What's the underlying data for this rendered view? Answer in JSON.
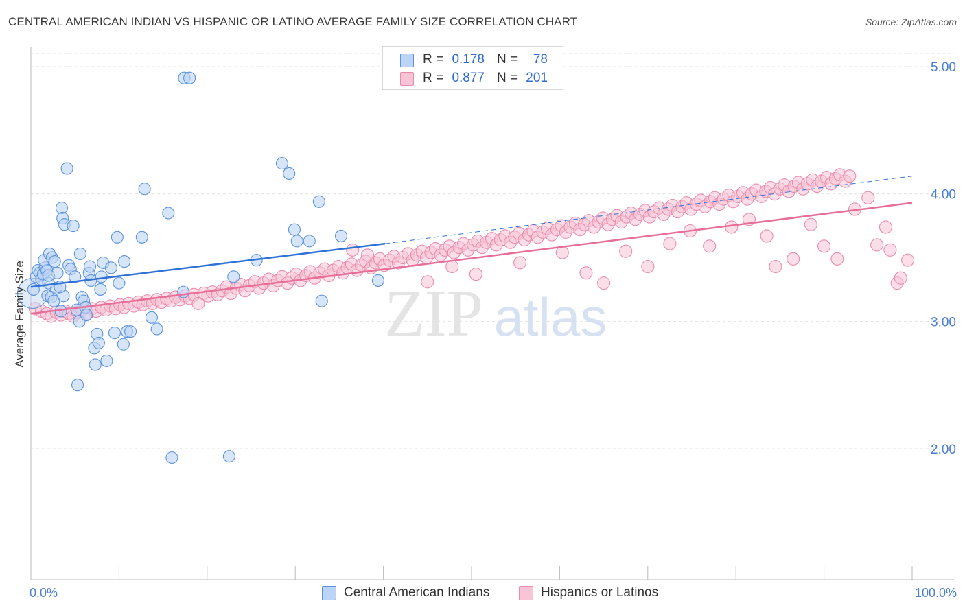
{
  "title": "CENTRAL AMERICAN INDIAN VS HISPANIC OR LATINO AVERAGE FAMILY SIZE CORRELATION CHART",
  "source": "Source: ZipAtlas.com",
  "watermark": {
    "zip": "ZIP",
    "atlas": "atlas"
  },
  "legend": {
    "rows": [
      {
        "r_label": "R =",
        "r_value": "0.178",
        "n_label": "N =",
        "n_value": "78"
      },
      {
        "r_label": "R =",
        "r_value": "0.877",
        "n_label": "N =",
        "n_value": "201"
      }
    ]
  },
  "colors": {
    "blue_fill": "#bcd4f5",
    "blue_stroke": "#5b93de",
    "blue_line": "#2f72d6",
    "pink_fill": "#f8c4d6",
    "pink_stroke": "#ea8bab",
    "pink_line": "#e66e98",
    "value_text": "#2f6bd1",
    "grid": "#dedede"
  },
  "chart_data": {
    "type": "scatter",
    "title": "CENTRAL AMERICAN INDIAN VS HISPANIC OR LATINO AVERAGE FAMILY SIZE CORRELATION CHART",
    "xlabel": "",
    "ylabel": "Average Family Size",
    "xlim": [
      0,
      100
    ],
    "ylim": [
      1.0,
      5.25
    ],
    "x_tick_labels": [
      "0.0%",
      "100.0%"
    ],
    "y_ticks": [
      2.0,
      3.0,
      4.0,
      5.0
    ],
    "y_tick_labels": [
      "2.00",
      "3.00",
      "4.00",
      "5.00"
    ],
    "grid": true,
    "legend_position": "top-center",
    "series": [
      {
        "name": "Central American Indians",
        "color": "#5b93de",
        "R": 0.178,
        "N": 78,
        "trend": {
          "x": [
            0,
            40.2
          ],
          "y": [
            3.27,
            3.61
          ],
          "extended_to": [
            100,
            4.14
          ]
        },
        "points": [
          [
            0.6,
            3.35
          ],
          [
            0.8,
            3.4
          ],
          [
            1.0,
            3.38
          ],
          [
            1.2,
            3.33
          ],
          [
            1.4,
            3.37
          ],
          [
            1.6,
            3.42
          ],
          [
            1.8,
            3.4
          ],
          [
            2.0,
            3.3
          ],
          [
            1.5,
            3.48
          ],
          [
            2.1,
            3.53
          ],
          [
            2.4,
            3.5
          ],
          [
            2.7,
            3.47
          ],
          [
            1.9,
            3.2
          ],
          [
            2.3,
            3.19
          ],
          [
            2.6,
            3.16
          ],
          [
            2.9,
            3.26
          ],
          [
            3.0,
            3.38
          ],
          [
            3.4,
            3.08
          ],
          [
            3.7,
            3.2
          ],
          [
            3.5,
            3.89
          ],
          [
            3.6,
            3.81
          ],
          [
            3.8,
            3.76
          ],
          [
            4.1,
            4.2
          ],
          [
            4.3,
            3.44
          ],
          [
            4.5,
            3.41
          ],
          [
            4.8,
            3.75
          ],
          [
            5.0,
            3.35
          ],
          [
            5.2,
            3.09
          ],
          [
            5.5,
            3.0
          ],
          [
            5.6,
            3.53
          ],
          [
            5.8,
            3.19
          ],
          [
            6.0,
            3.16
          ],
          [
            6.2,
            3.11
          ],
          [
            6.3,
            3.05
          ],
          [
            6.6,
            3.38
          ],
          [
            6.7,
            3.43
          ],
          [
            6.8,
            3.32
          ],
          [
            7.2,
            2.79
          ],
          [
            7.3,
            2.66
          ],
          [
            7.5,
            2.9
          ],
          [
            7.7,
            2.83
          ],
          [
            7.9,
            3.25
          ],
          [
            8.0,
            3.35
          ],
          [
            8.2,
            3.46
          ],
          [
            8.6,
            2.69
          ],
          [
            9.1,
            3.42
          ],
          [
            9.5,
            2.91
          ],
          [
            9.8,
            3.66
          ],
          [
            10.0,
            3.3
          ],
          [
            10.5,
            2.82
          ],
          [
            10.6,
            3.47
          ],
          [
            10.9,
            2.92
          ],
          [
            11.3,
            2.92
          ],
          [
            12.6,
            3.66
          ],
          [
            12.9,
            4.04
          ],
          [
            13.7,
            3.03
          ],
          [
            14.3,
            2.94
          ],
          [
            15.6,
            3.85
          ],
          [
            16.0,
            1.93
          ],
          [
            17.3,
            3.23
          ],
          [
            17.4,
            4.91
          ],
          [
            18.0,
            4.91
          ],
          [
            22.5,
            1.94
          ],
          [
            23.0,
            3.35
          ],
          [
            25.6,
            3.48
          ],
          [
            28.5,
            4.24
          ],
          [
            29.3,
            4.16
          ],
          [
            29.9,
            3.72
          ],
          [
            30.2,
            3.63
          ],
          [
            31.6,
            3.63
          ],
          [
            32.7,
            3.94
          ],
          [
            33.0,
            3.16
          ],
          [
            35.2,
            3.67
          ],
          [
            39.4,
            3.32
          ],
          [
            5.3,
            2.5
          ],
          [
            3.3,
            3.27
          ],
          [
            0.3,
            3.25
          ],
          [
            2.0,
            3.36
          ]
        ]
      },
      {
        "name": "Hispanics or Latinos",
        "color": "#ea8bab",
        "R": 0.877,
        "N": 201,
        "trend": {
          "x": [
            0,
            100
          ],
          "y": [
            3.06,
            3.93
          ]
        },
        "points": [
          [
            0.5,
            3.1
          ],
          [
            1.2,
            3.08
          ],
          [
            1.8,
            3.06
          ],
          [
            2.3,
            3.04
          ],
          [
            2.9,
            3.07
          ],
          [
            3.4,
            3.05
          ],
          [
            3.9,
            3.08
          ],
          [
            4.3,
            3.06
          ],
          [
            4.8,
            3.04
          ],
          [
            5.3,
            3.07
          ],
          [
            5.8,
            3.09
          ],
          [
            6.4,
            3.06
          ],
          [
            6.9,
            3.1
          ],
          [
            7.4,
            3.08
          ],
          [
            8.0,
            3.11
          ],
          [
            8.5,
            3.09
          ],
          [
            9.0,
            3.12
          ],
          [
            9.6,
            3.1
          ],
          [
            10.1,
            3.13
          ],
          [
            10.6,
            3.11
          ],
          [
            11.1,
            3.14
          ],
          [
            11.7,
            3.12
          ],
          [
            12.2,
            3.15
          ],
          [
            12.7,
            3.13
          ],
          [
            13.2,
            3.16
          ],
          [
            13.8,
            3.14
          ],
          [
            14.3,
            3.17
          ],
          [
            14.8,
            3.15
          ],
          [
            15.4,
            3.18
          ],
          [
            15.9,
            3.16
          ],
          [
            16.4,
            3.19
          ],
          [
            16.9,
            3.17
          ],
          [
            17.5,
            3.2
          ],
          [
            18.0,
            3.18
          ],
          [
            18.5,
            3.21
          ],
          [
            19.0,
            3.14
          ],
          [
            19.6,
            3.22
          ],
          [
            20.1,
            3.2
          ],
          [
            20.6,
            3.23
          ],
          [
            21.2,
            3.21
          ],
          [
            21.7,
            3.24
          ],
          [
            22.2,
            3.27
          ],
          [
            22.7,
            3.22
          ],
          [
            23.3,
            3.26
          ],
          [
            23.8,
            3.29
          ],
          [
            24.3,
            3.24
          ],
          [
            24.8,
            3.28
          ],
          [
            25.4,
            3.31
          ],
          [
            25.9,
            3.26
          ],
          [
            26.4,
            3.3
          ],
          [
            27.0,
            3.33
          ],
          [
            27.5,
            3.28
          ],
          [
            28.0,
            3.32
          ],
          [
            28.5,
            3.35
          ],
          [
            29.1,
            3.3
          ],
          [
            29.6,
            3.34
          ],
          [
            30.1,
            3.37
          ],
          [
            30.6,
            3.32
          ],
          [
            31.2,
            3.36
          ],
          [
            31.7,
            3.39
          ],
          [
            32.2,
            3.34
          ],
          [
            32.8,
            3.38
          ],
          [
            33.3,
            3.41
          ],
          [
            33.8,
            3.36
          ],
          [
            34.3,
            3.4
          ],
          [
            34.9,
            3.43
          ],
          [
            35.4,
            3.38
          ],
          [
            35.9,
            3.42
          ],
          [
            36.4,
            3.45
          ],
          [
            37.0,
            3.4
          ],
          [
            37.5,
            3.44
          ],
          [
            38.0,
            3.47
          ],
          [
            38.6,
            3.42
          ],
          [
            39.1,
            3.46
          ],
          [
            39.6,
            3.49
          ],
          [
            40.1,
            3.44
          ],
          [
            40.7,
            3.48
          ],
          [
            41.2,
            3.51
          ],
          [
            41.7,
            3.46
          ],
          [
            42.2,
            3.5
          ],
          [
            42.8,
            3.53
          ],
          [
            43.3,
            3.48
          ],
          [
            43.8,
            3.52
          ],
          [
            44.4,
            3.55
          ],
          [
            44.9,
            3.5
          ],
          [
            45.4,
            3.54
          ],
          [
            45.9,
            3.57
          ],
          [
            46.5,
            3.52
          ],
          [
            47.0,
            3.56
          ],
          [
            47.5,
            3.59
          ],
          [
            48.0,
            3.54
          ],
          [
            48.6,
            3.58
          ],
          [
            49.1,
            3.61
          ],
          [
            49.6,
            3.56
          ],
          [
            50.2,
            3.6
          ],
          [
            50.7,
            3.63
          ],
          [
            51.2,
            3.58
          ],
          [
            51.7,
            3.62
          ],
          [
            52.3,
            3.65
          ],
          [
            52.8,
            3.6
          ],
          [
            53.3,
            3.64
          ],
          [
            53.8,
            3.67
          ],
          [
            54.4,
            3.62
          ],
          [
            54.9,
            3.66
          ],
          [
            55.4,
            3.69
          ],
          [
            56.0,
            3.64
          ],
          [
            56.5,
            3.68
          ],
          [
            57.0,
            3.71
          ],
          [
            57.5,
            3.66
          ],
          [
            58.1,
            3.7
          ],
          [
            58.6,
            3.73
          ],
          [
            59.1,
            3.68
          ],
          [
            59.7,
            3.72
          ],
          [
            60.2,
            3.75
          ],
          [
            60.7,
            3.7
          ],
          [
            61.2,
            3.74
          ],
          [
            61.8,
            3.77
          ],
          [
            62.3,
            3.72
          ],
          [
            62.8,
            3.76
          ],
          [
            63.3,
            3.79
          ],
          [
            63.9,
            3.74
          ],
          [
            64.4,
            3.78
          ],
          [
            64.9,
            3.81
          ],
          [
            65.5,
            3.76
          ],
          [
            66.0,
            3.8
          ],
          [
            66.5,
            3.83
          ],
          [
            67.0,
            3.78
          ],
          [
            67.6,
            3.82
          ],
          [
            68.1,
            3.85
          ],
          [
            68.6,
            3.8
          ],
          [
            69.1,
            3.84
          ],
          [
            69.7,
            3.87
          ],
          [
            70.2,
            3.82
          ],
          [
            70.7,
            3.86
          ],
          [
            71.3,
            3.89
          ],
          [
            71.8,
            3.84
          ],
          [
            72.3,
            3.88
          ],
          [
            72.8,
            3.91
          ],
          [
            73.4,
            3.86
          ],
          [
            73.9,
            3.9
          ],
          [
            74.4,
            3.93
          ],
          [
            74.9,
            3.88
          ],
          [
            75.5,
            3.92
          ],
          [
            76.0,
            3.95
          ],
          [
            76.5,
            3.9
          ],
          [
            77.1,
            3.94
          ],
          [
            77.6,
            3.97
          ],
          [
            78.1,
            3.92
          ],
          [
            78.6,
            3.96
          ],
          [
            79.2,
            3.99
          ],
          [
            79.7,
            3.94
          ],
          [
            80.2,
            3.98
          ],
          [
            80.8,
            4.01
          ],
          [
            81.3,
            3.96
          ],
          [
            81.8,
            4.0
          ],
          [
            82.3,
            4.03
          ],
          [
            82.9,
            3.98
          ],
          [
            83.4,
            4.02
          ],
          [
            83.9,
            4.05
          ],
          [
            84.4,
            4.0
          ],
          [
            85.0,
            4.04
          ],
          [
            85.5,
            4.07
          ],
          [
            86.0,
            4.02
          ],
          [
            86.6,
            4.06
          ],
          [
            87.1,
            4.09
          ],
          [
            87.6,
            4.04
          ],
          [
            88.1,
            4.08
          ],
          [
            88.7,
            4.11
          ],
          [
            89.2,
            4.06
          ],
          [
            89.7,
            4.1
          ],
          [
            90.3,
            4.13
          ],
          [
            90.8,
            4.08
          ],
          [
            91.3,
            4.12
          ],
          [
            91.8,
            4.15
          ],
          [
            92.4,
            4.1
          ],
          [
            92.9,
            4.14
          ],
          [
            36.5,
            3.56
          ],
          [
            38.2,
            3.52
          ],
          [
            45.0,
            3.31
          ],
          [
            47.8,
            3.43
          ],
          [
            50.5,
            3.37
          ],
          [
            55.5,
            3.46
          ],
          [
            60.3,
            3.54
          ],
          [
            63.0,
            3.38
          ],
          [
            65.0,
            3.3
          ],
          [
            67.5,
            3.55
          ],
          [
            70.0,
            3.43
          ],
          [
            72.5,
            3.61
          ],
          [
            74.8,
            3.71
          ],
          [
            77.0,
            3.59
          ],
          [
            79.5,
            3.74
          ],
          [
            81.5,
            3.8
          ],
          [
            83.5,
            3.67
          ],
          [
            84.5,
            3.43
          ],
          [
            86.5,
            3.49
          ],
          [
            88.5,
            3.76
          ],
          [
            90.0,
            3.59
          ],
          [
            91.5,
            3.49
          ],
          [
            93.5,
            3.88
          ],
          [
            95.0,
            3.97
          ],
          [
            96.0,
            3.6
          ],
          [
            97.0,
            3.74
          ],
          [
            97.5,
            3.56
          ],
          [
            98.3,
            3.3
          ],
          [
            98.7,
            3.34
          ],
          [
            99.5,
            3.48
          ]
        ]
      }
    ]
  },
  "bottom_legend": [
    "Central American Indians",
    "Hispanics or Latinos"
  ]
}
